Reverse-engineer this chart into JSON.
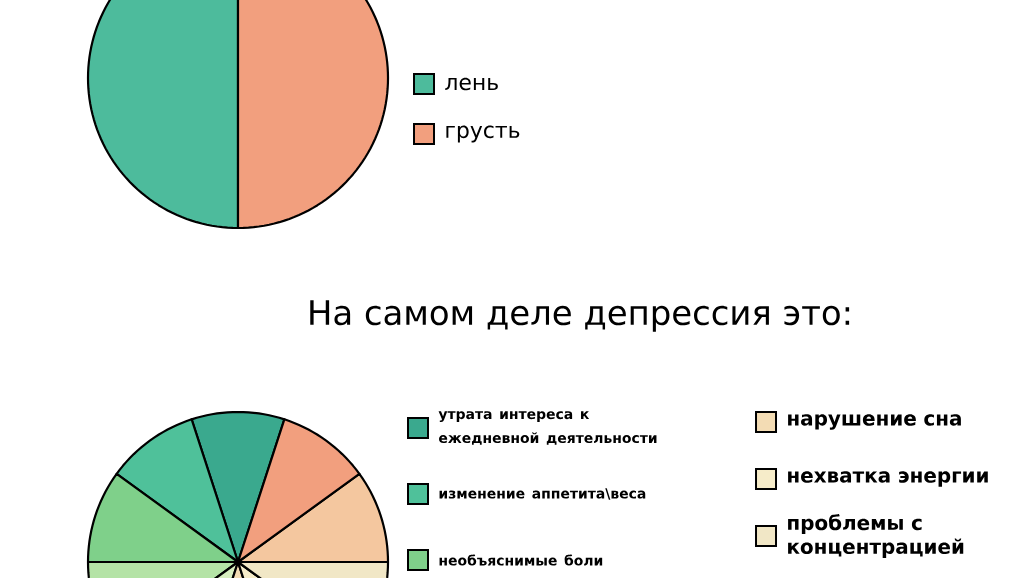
{
  "chart_data": [
    {
      "type": "pie",
      "categories": [
        "лень",
        "грусть"
      ],
      "values": [
        50,
        50
      ],
      "colors": [
        "#4dbb9c",
        "#f29f7e"
      ],
      "legend": "right"
    },
    {
      "type": "pie",
      "title": "На самом деле депрессия это:",
      "categories": [
        "утрата интереса к ежедневной деятельности",
        "изменение аппетита\\веса",
        "необъяснимые боли",
        null,
        null,
        "нарушение сна",
        "нехватка энергии",
        "проблемы с концентрацией",
        null,
        null
      ],
      "values": [
        10,
        10,
        10,
        10,
        10,
        10,
        10,
        10,
        10,
        10
      ],
      "colors": [
        "#3aa98e",
        "#4fc19a",
        "#7fd08a",
        "#b4e3a6",
        "#d8efc0",
        "#f3dcb4",
        "#f6ecc9",
        "#f1e7c6",
        "#f4c79f",
        "#f29f7e"
      ],
      "legend": "right"
    }
  ]
}
